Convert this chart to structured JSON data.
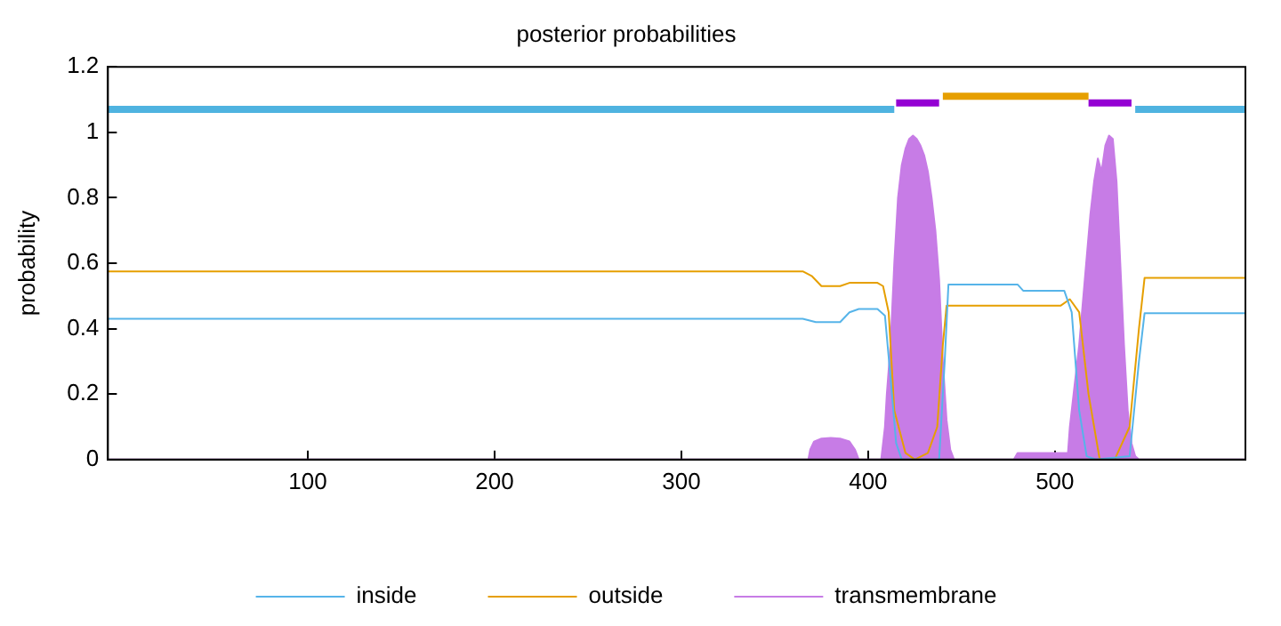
{
  "chart_data": {
    "type": "line",
    "title": "posterior probabilities",
    "ylabel": "probability",
    "xlim": [
      -7,
      602
    ],
    "ylim": [
      0,
      1.2
    ],
    "xticks": [
      100,
      200,
      300,
      400,
      500
    ],
    "yticks": [
      0,
      0.2,
      0.4,
      0.6,
      0.8,
      1,
      1.2
    ],
    "grid": false,
    "legend": "bottom",
    "marker": "none",
    "line_style": "solid",
    "series": [
      {
        "name": "transmembrane",
        "type": "area",
        "color": "#c77ce6",
        "x": [
          -7,
          368,
          369,
          371,
          375,
          380,
          385,
          390,
          393,
          395,
          407,
          409,
          410,
          412,
          414,
          416,
          418,
          420,
          422,
          424,
          426,
          428,
          430,
          432,
          434,
          436,
          438,
          440,
          442,
          444,
          446,
          478,
          480,
          507,
          508,
          510,
          513,
          516,
          519,
          521,
          523,
          525,
          527,
          529,
          531,
          533,
          535,
          537,
          539,
          541,
          543,
          545,
          602
        ],
        "values": [
          0,
          0,
          0.03,
          0.055,
          0.064,
          0.066,
          0.064,
          0.055,
          0.03,
          0,
          0,
          0.1,
          0.2,
          0.35,
          0.6,
          0.8,
          0.9,
          0.95,
          0.98,
          0.99,
          0.98,
          0.96,
          0.93,
          0.88,
          0.8,
          0.7,
          0.55,
          0.3,
          0.12,
          0.03,
          0,
          0,
          0.02,
          0.02,
          0.1,
          0.2,
          0.35,
          0.55,
          0.75,
          0.85,
          0.92,
          0.88,
          0.96,
          0.99,
          0.98,
          0.85,
          0.6,
          0.35,
          0.15,
          0.05,
          0.01,
          0,
          0
        ]
      },
      {
        "name": "inside",
        "color": "#56b4e9",
        "x": [
          -7,
          365,
          372,
          385,
          390,
          395,
          405,
          409,
          412,
          415,
          418,
          438,
          441,
          443,
          480,
          483,
          505,
          509,
          513,
          517,
          522,
          540,
          545,
          548,
          602
        ],
        "values": [
          0.43,
          0.43,
          0.42,
          0.42,
          0.45,
          0.46,
          0.46,
          0.44,
          0.25,
          0.05,
          0,
          0,
          0.3,
          0.535,
          0.535,
          0.516,
          0.516,
          0.45,
          0.15,
          0.01,
          0,
          0.01,
          0.3,
          0.447,
          0.447
        ]
      },
      {
        "name": "outside",
        "color": "#e69f00",
        "x": [
          -7,
          365,
          370,
          375,
          385,
          390,
          405,
          408,
          411,
          414,
          420,
          425,
          432,
          437,
          440,
          442,
          503,
          508,
          513,
          518,
          524,
          532,
          540,
          545,
          548,
          602
        ],
        "values": [
          0.575,
          0.575,
          0.56,
          0.53,
          0.53,
          0.54,
          0.54,
          0.53,
          0.45,
          0.15,
          0.02,
          0,
          0.02,
          0.1,
          0.35,
          0.47,
          0.47,
          0.49,
          0.45,
          0.2,
          0,
          0,
          0.1,
          0.4,
          0.555,
          0.555
        ]
      },
      {
        "color": "#4fb3e0",
        "x": [
          -7,
          414,
          414.5,
          543,
          602
        ],
        "values": [
          1.07,
          1.07,
          null,
          1.07,
          1.07
        ]
      },
      {
        "color": "#9400d3",
        "x": [
          415,
          438,
          438.5,
          518,
          541
        ],
        "values": [
          1.09,
          1.09,
          null,
          1.09,
          1.09
        ]
      },
      {
        "color": "#e69f00",
        "x": [
          440,
          518
        ],
        "values": [
          1.11,
          1.11
        ]
      }
    ]
  }
}
